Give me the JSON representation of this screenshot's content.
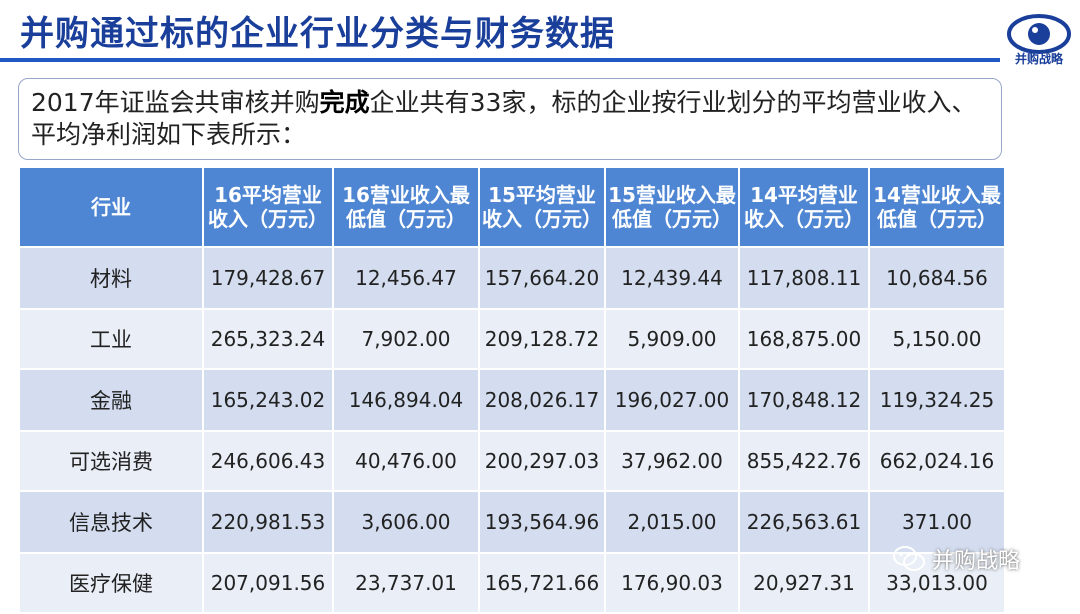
{
  "header": {
    "title": "并购通过标的企业行业分类与财务数据",
    "logo_text": "并购战略",
    "logo_icon": "eye-icon"
  },
  "intro": {
    "before_bold": "2017年证监会共审核并购",
    "bold": "完成",
    "after_bold": "企业共有33家，标的企业按行业划分的平均营业收入、平均净利润如下表所示："
  },
  "table": {
    "headers": [
      "行业",
      "16平均营业收入（万元）",
      "16营业收入最低值（万元）",
      "15平均营业收入（万元）",
      "15营业收入最低值（万元）",
      "14平均营业收入（万元）",
      "14营业收入最低值（万元）"
    ],
    "rows": [
      [
        "材料",
        "179,428.67",
        "12,456.47",
        "157,664.20",
        "12,439.44",
        "117,808.11",
        "10,684.56"
      ],
      [
        "工业",
        "265,323.24",
        "7,902.00",
        "209,128.72",
        "5,909.00",
        "168,875.00",
        "5,150.00"
      ],
      [
        "金融",
        "165,243.02",
        "146,894.04",
        "208,026.17",
        "196,027.00",
        "170,848.12",
        "119,324.25"
      ],
      [
        "可选消费",
        "246,606.43",
        "40,476.00",
        "200,297.03",
        "37,962.00",
        "855,422.76",
        "662,024.16"
      ],
      [
        "信息技术",
        "220,981.53",
        "3,606.00",
        "193,564.96",
        "2,015.00",
        "226,563.61",
        "371.00"
      ],
      [
        "医疗保健",
        "207,091.56",
        "23,737.01",
        "165,721.66",
        "176,90.03",
        "20,927.31",
        "33,013.00"
      ]
    ]
  },
  "watermark": {
    "text": "并购战略",
    "icon": "wechat-icon"
  },
  "colors": {
    "title": "#1a3f9b",
    "rule": "#1f57c3",
    "header_bg": "#4f86d3",
    "row_odd": "#d3ddef",
    "row_even": "#e9eef7"
  }
}
